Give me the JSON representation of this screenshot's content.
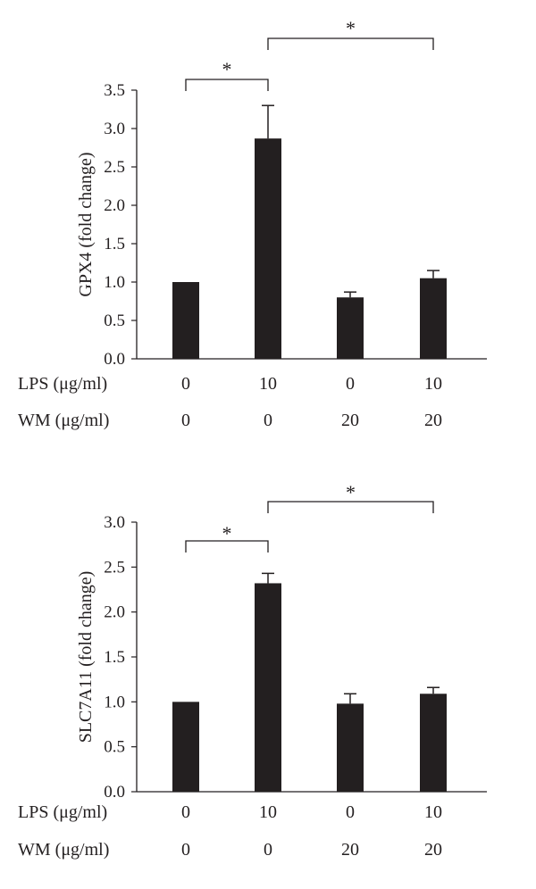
{
  "chart_data": [
    {
      "type": "bar",
      "ylabel": "GPX4 (fold change)",
      "ylim": [
        0,
        3.5
      ],
      "yticks": [
        "0.0",
        "0.5",
        "1.0",
        "1.5",
        "2.0",
        "2.5",
        "3.0",
        "3.5"
      ],
      "conditions": [
        {
          "name": "LPS (μg/ml)",
          "values": [
            "0",
            "10",
            "0",
            "10"
          ]
        },
        {
          "name": "WM (μg/ml)",
          "values": [
            "0",
            "0",
            "20",
            "20"
          ]
        }
      ],
      "values": [
        1.0,
        2.87,
        0.8,
        1.05
      ],
      "errors": [
        0,
        0.43,
        0.07,
        0.1
      ],
      "significance": [
        {
          "from": 0,
          "to": 1,
          "label": "*"
        },
        {
          "from": 1,
          "to": 3,
          "label": "*"
        }
      ],
      "bar_color": "#231f20"
    },
    {
      "type": "bar",
      "ylabel": "SLC7A11 (fold change)",
      "ylim": [
        0,
        3.0
      ],
      "yticks": [
        "0.0",
        "0.5",
        "1.0",
        "1.5",
        "2.0",
        "2.5",
        "3.0"
      ],
      "conditions": [
        {
          "name": "LPS (μg/ml)",
          "values": [
            "0",
            "10",
            "0",
            "10"
          ]
        },
        {
          "name": "WM (μg/ml)",
          "values": [
            "0",
            "0",
            "20",
            "20"
          ]
        }
      ],
      "values": [
        1.0,
        2.32,
        0.98,
        1.09
      ],
      "errors": [
        0,
        0.11,
        0.11,
        0.07
      ],
      "significance": [
        {
          "from": 0,
          "to": 1,
          "label": "*"
        },
        {
          "from": 1,
          "to": 3,
          "label": "*"
        }
      ],
      "bar_color": "#231f20"
    }
  ]
}
